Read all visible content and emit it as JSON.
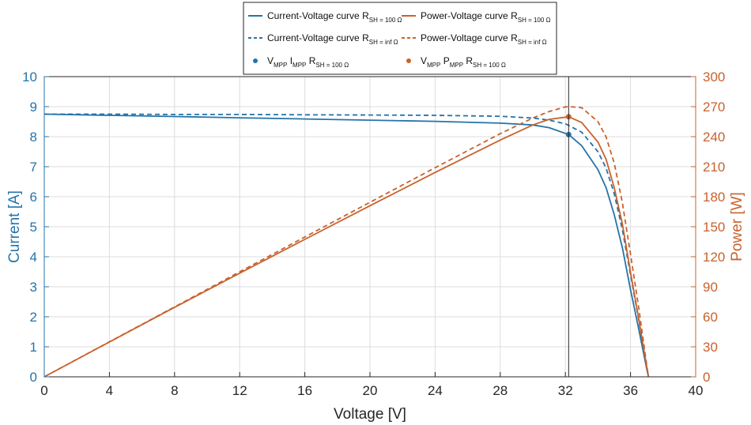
{
  "chart_data": {
    "type": "line",
    "title": "",
    "xlabel": "Voltage [V]",
    "ylabel": "Current [A]",
    "ylabel_right": "Power [W]",
    "xlim": [
      0,
      40
    ],
    "ylim": [
      0,
      10
    ],
    "ylim_right": [
      0,
      300
    ],
    "x_ticks": [
      "0",
      "4",
      "8",
      "12",
      "16",
      "20",
      "24",
      "28",
      "32",
      "36",
      "40"
    ],
    "y_ticks": [
      "0",
      "1",
      "2",
      "3",
      "4",
      "5",
      "6",
      "7",
      "8",
      "9",
      "10"
    ],
    "y_ticks_right": [
      "0",
      "30",
      "60",
      "90",
      "120",
      "150",
      "180",
      "210",
      "240",
      "270",
      "300"
    ],
    "grid": true,
    "legend_position": "top-center",
    "vertical_line_x": 32.2,
    "colors": {
      "current": "#2574a9",
      "power": "#c8622d",
      "axis": "#262626"
    },
    "series": [
      {
        "name": "Current-Voltage curve",
        "name_sub": "SH",
        "name_tail": " = 100 Ω",
        "name_prefix": "R",
        "axis": "left",
        "style": "solid",
        "x": [
          0,
          4,
          8,
          12,
          16,
          20,
          24,
          28,
          30,
          31,
          32.2,
          33,
          34,
          34.5,
          35,
          35.5,
          36,
          36.5,
          37,
          37.1
        ],
        "y": [
          8.75,
          8.71,
          8.67,
          8.63,
          8.59,
          8.55,
          8.51,
          8.45,
          8.39,
          8.3,
          8.07,
          7.7,
          6.9,
          6.3,
          5.4,
          4.3,
          2.9,
          1.6,
          0.25,
          0
        ]
      },
      {
        "name": "Current-Voltage curve",
        "name_sub": "SH",
        "name_tail": " = inf Ω",
        "name_prefix": "R",
        "axis": "left",
        "style": "dashed",
        "x": [
          0,
          4,
          8,
          12,
          16,
          20,
          24,
          28,
          30,
          31,
          32,
          33,
          34,
          34.5,
          35,
          35.5,
          36,
          36.5,
          37,
          37.1
        ],
        "y": [
          8.75,
          8.75,
          8.74,
          8.74,
          8.73,
          8.72,
          8.71,
          8.68,
          8.62,
          8.55,
          8.43,
          8.15,
          7.5,
          6.95,
          6.1,
          4.9,
          3.4,
          1.9,
          0.3,
          0
        ]
      },
      {
        "name": "Power-Voltage curve",
        "name_sub": "SH",
        "name_tail": " = 100 Ω",
        "name_prefix": "R",
        "axis": "right",
        "style": "solid",
        "x": [
          0,
          4,
          8,
          12,
          16,
          20,
          24,
          28,
          30,
          31,
          32.2,
          33,
          34,
          34.5,
          35,
          35.5,
          36,
          36.5,
          37,
          37.1
        ],
        "y": [
          0,
          34.8,
          69.4,
          103.6,
          137.4,
          171,
          204.2,
          236.6,
          251.7,
          257.3,
          259.9,
          254.1,
          234.6,
          217.4,
          189,
          152.7,
          104.4,
          58.4,
          9.3,
          0
        ]
      },
      {
        "name": "Power-Voltage curve",
        "name_sub": "SH",
        "name_tail": " = inf Ω",
        "name_prefix": "R",
        "axis": "right",
        "style": "dashed",
        "x": [
          0,
          4,
          8,
          12,
          16,
          20,
          24,
          28,
          30,
          31,
          32,
          32.3,
          33,
          34,
          34.5,
          35,
          35.5,
          36,
          36.5,
          37,
          37.1
        ],
        "y": [
          0,
          35,
          69.9,
          104.9,
          139.7,
          174.4,
          209,
          243,
          258.6,
          265.1,
          269.8,
          269.9,
          269,
          255,
          239.8,
          213.5,
          174,
          122.4,
          69.4,
          11.1,
          0
        ]
      }
    ],
    "points": [
      {
        "name": "V",
        "name_sub": "MPP",
        "name_mid": "I",
        "name_mid_sub": "MPP",
        "name_r": " R",
        "name_r_sub": "SH",
        "name_tail": " = 100 Ω",
        "axis": "left",
        "x": 32.2,
        "y": 8.07
      },
      {
        "name": "V",
        "name_sub": "MPP",
        "name_mid": "P",
        "name_mid_sub": "MPP",
        "name_r": " R",
        "name_r_sub": "SH",
        "name_tail": " = 100 Ω",
        "axis": "right",
        "x": 32.2,
        "y": 259.9
      }
    ]
  }
}
